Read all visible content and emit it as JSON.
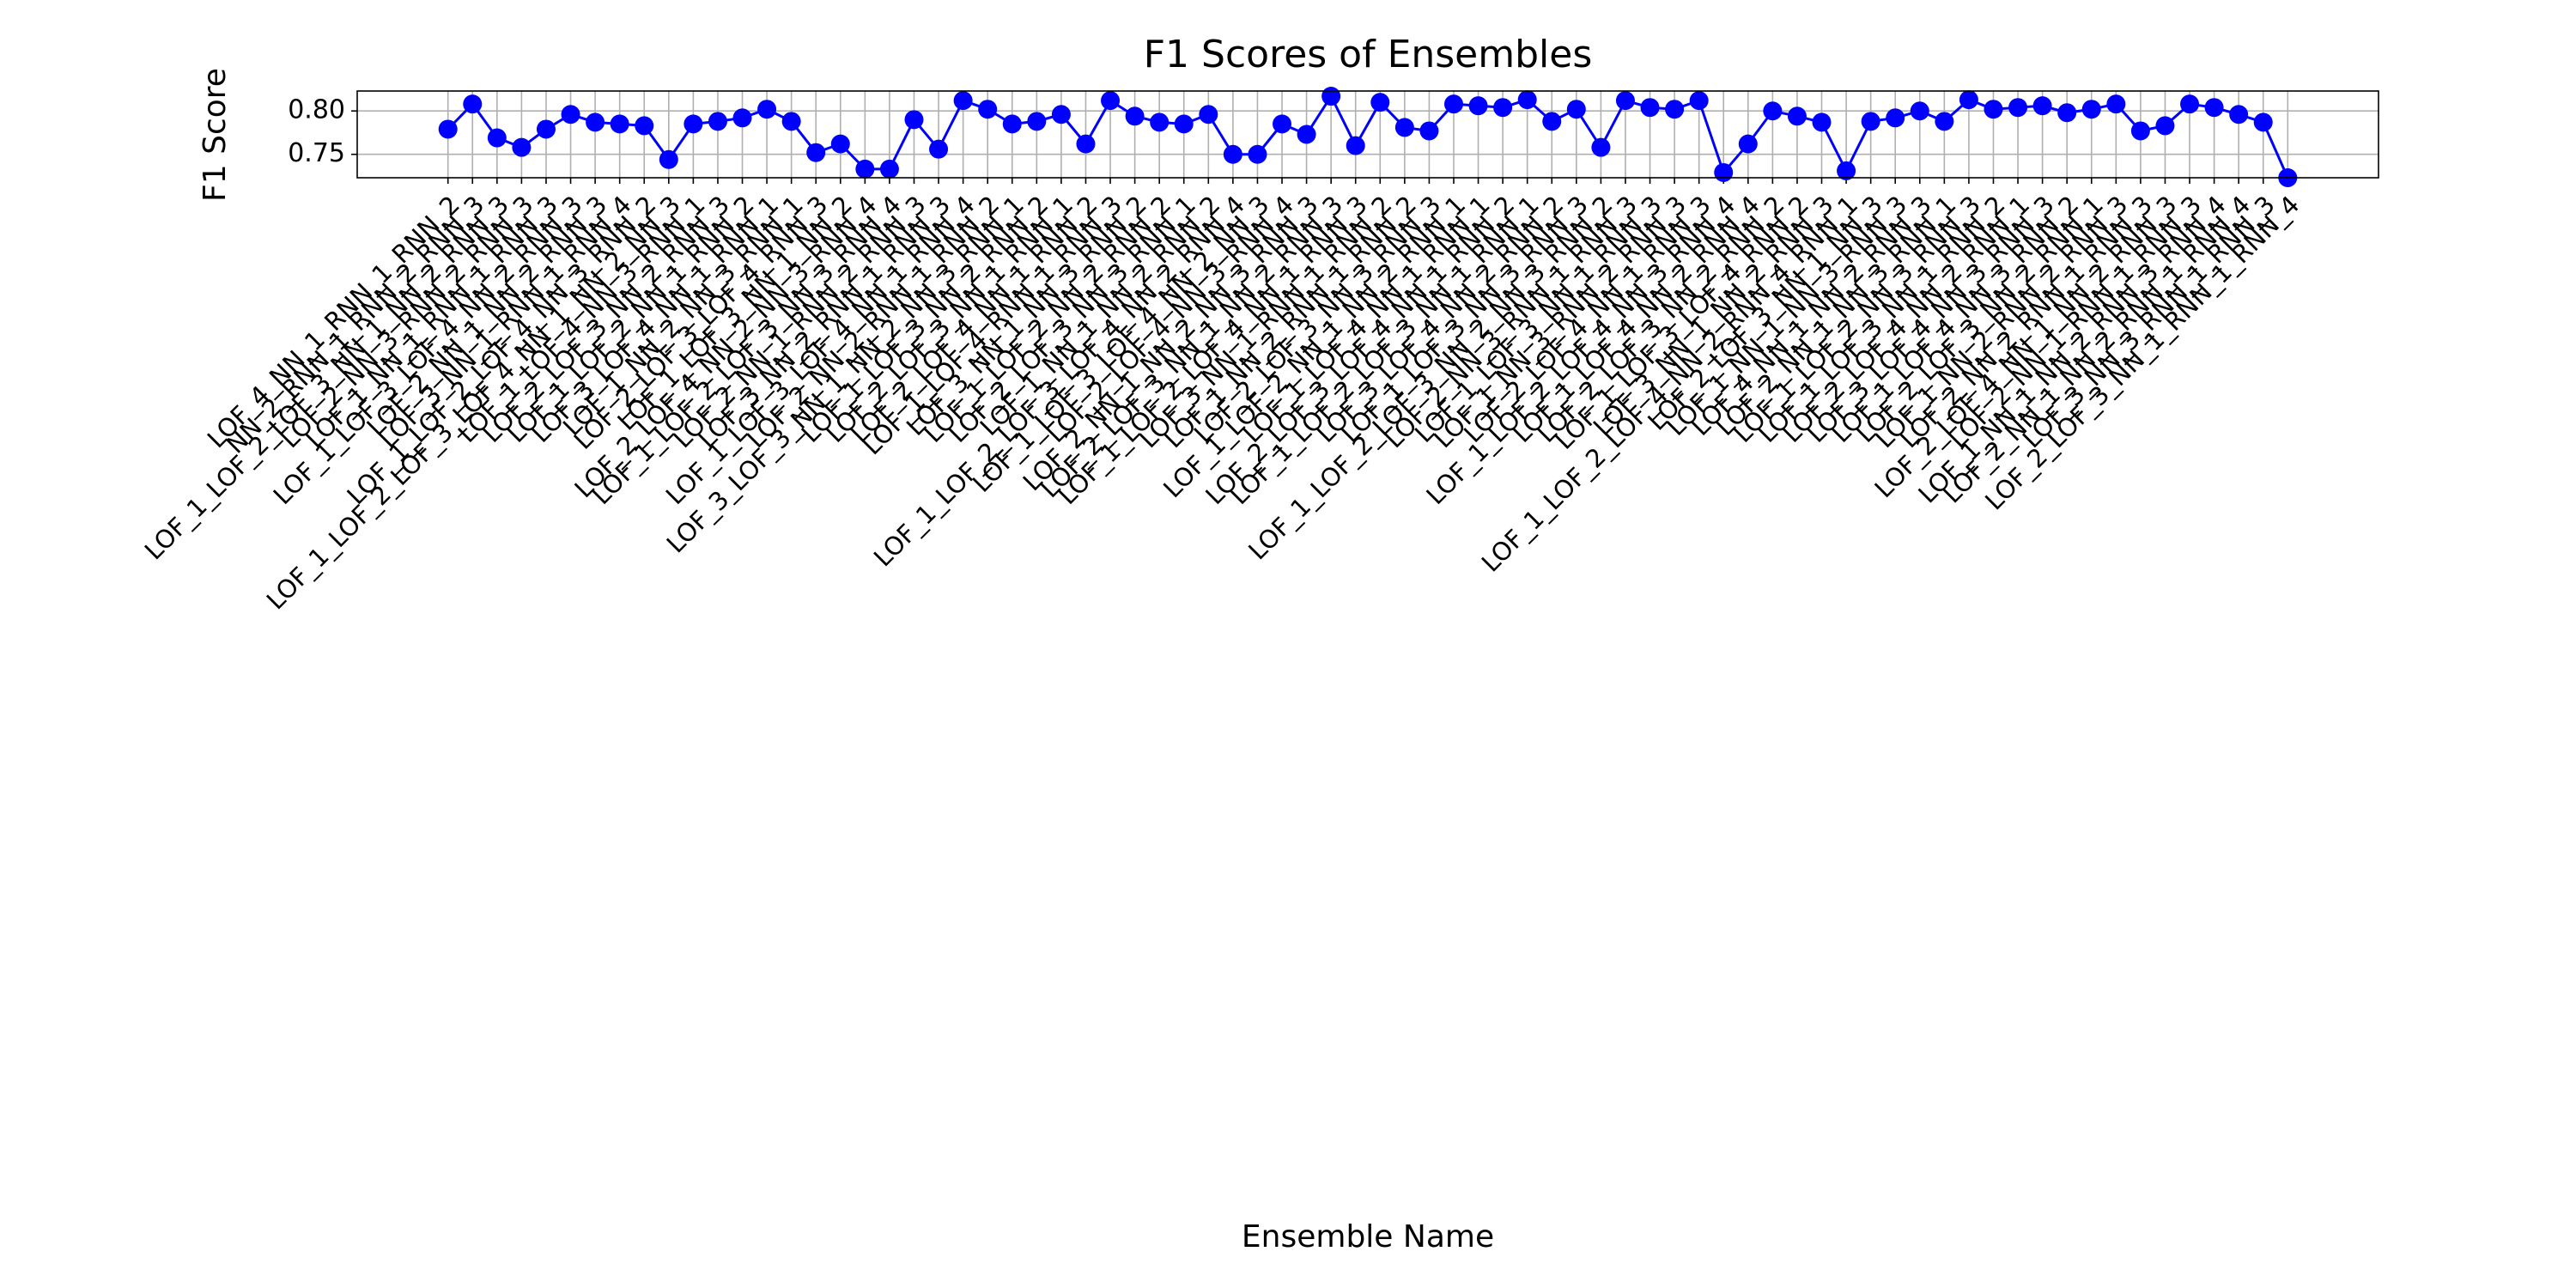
{
  "chart_data": {
    "type": "line",
    "title": "F1 Scores of Ensembles",
    "x_label": "Ensemble Name",
    "y_label": "F1 Score",
    "categories": [
      "LOF_4_NN_1_RNN_1_RNN_2",
      "NN_2_RNN_1_RNN_2_RNN_3",
      "LOF_1_LOF_2_LOF_3_NN_1_NN_2_RNN_3",
      "LOF_2_NN_3_RNN_2_RNN_3",
      "LOF_1_NN_1_RNN_1_RNN_3",
      "LOF_1_LOF_3_LOF_4_NN_2_RNN_3",
      "LOF_2_NN_1_NN_2_RNN_3",
      "LOF_3_NN_1_RNN_1_RNN_4",
      "LOF_1_LOF_2_LOF_4_NN_3_RNN_2",
      "LOF_1_LOF_2_LOF_3_LOF_4_NN_1_NN_2_NN_3",
      "LOF_1_LOF_4_NN_3_RNN_1",
      "LOF_2_LOF_3_NN_2_RNN_3",
      "LOF_1_LOF_2_NN_1_RNN_2",
      "LOF_3_LOF_4_NN_1_RNN_1",
      "LOF_1_NN_2_NN_3_RNN_1",
      "LOF_2_LOF_3_LOF_4_RNN_3",
      "LOF_1_LOF_3_NN_1_NN_2",
      "LOF_2_LOF_4_NN_2_NN_3_RNN_4",
      "LOF_1_LOF_2_LOF_3_NN_3_RNN_4",
      "LOF_2_NN_1_RNN_2_RNN_3",
      "LOF_3_NN_2_RNN_1_RNN_3",
      "LOF_1_LOF_3_LOF_4_NN_1_RNN_4",
      "LOF_2_NN_2_RNN_1_RNN_2",
      "LOF_3_LOF_3_NN_1_NN_2_NN_3_RNN_1",
      "LOF_1_LOF_3_NN_2_RNN_2",
      "LOF_2_LOF_3_NN_1_RNN_1",
      "LOF_2_LOF_4_NN_1_RNN_2",
      "LOF_1_LOF_4_RNN_1_RNN_3",
      "LOF_3_NN_1_NN_3_RNN_2",
      "LOF_1_LOF_2_NN_2_RNN_2",
      "LOF_2_LOF_3_NN_3_RNN_1",
      "LOF_1_NN_1_NN_2_RNN_2",
      "LOF_1_LOF_2_LOF_3_LOF_4_NN_2_RNN_4",
      "LOF_1_LOF_3_LOF_4_NN_2_NN_3",
      "LOF_2_LOF_4_NN_3_RNN_4",
      "LOF_2_NN_1_NN_2_NN_3_RNN_3",
      "LOF_2_LOF_3_NN_1_NN_2_RNN_3",
      "LOF_1_LOF_2_LOF_4_NN_1_RNN_3",
      "LOF_3_NN_1_RNN_1_RNN_2",
      "LOF_1_NN_2_RNN_1_RNN_2",
      "LOF_2_LOF_3_NN_3_RNN_3",
      "LOF_1_LOF_2_NN_1_NN_2_RNN_1",
      "LOF_1_LOF_4_NN_1_RNN_1",
      "LOF_2_LOF_3_LOF_4_NN_1_RNN_2",
      "LOF_1_LOF_2_LOF_3_NN_1_RNN_1",
      "LOF_3_LOF_4_NN_2_RNN_2",
      "LOF_1_LOF_3_NN_3_RNN_3",
      "LOF_1_LOF_2_LOF_3_NN_2_NN_3_RNN_2",
      "LOF_2_NN_3_RNN_1_RNN_3",
      "LOF_1_LOF_3_NN_1_RNN_3",
      "LOF_1_NN_3_RNN_2_RNN_3",
      "LOF_2_LOF_4_NN_1_RNN_3",
      "LOF_1_LOF_2_LOF_4_NN_3_RNN_4",
      "LOF_1_LOF_4_NN_2_RNN_4",
      "LOF_2_LOF_3_NN_2_RNN_2",
      "LOF_1_LOF_3_LOF_4_RNN_2",
      "LOF_3_NN_1_NN_2_RNN_3",
      "LOF_1_LOF_2_LOF_4_NN_2_RNN_4_RNN_1",
      "LOF_2_LOF_3_NN_1_NN_3",
      "LOF_1_NN_1_NN_3_RNN_3",
      "LOF_4_NN_1_NN_2_RNN_3",
      "LOF_2_NN_1_NN_3_RNN_1",
      "LOF_1_LOF_2_NN_3_RNN_3",
      "LOF_1_LOF_3_NN_1_RNN_2",
      "LOF_2_LOF_4_NN_2_RNN_1",
      "LOF_3_LOF_4_NN_3_RNN_3",
      "LOF_1_LOF_4_NN_3_RNN_2",
      "LOF_2_LOF_3_NN_2_RNN_1",
      "LOF_1_NN_2_RNN_2_RNN_3",
      "LOF_2_NN_2_RNN_1_RNN_3",
      "LOF_2_LOF_4_NN_1_NN_2_RNN_3",
      "LOF_2_NN_1_RNN_1_RNN_3",
      "LOF_1_NN_1_NN_2_RNN_3_RNN_4",
      "LOF_2_NN_1_NN_2_RNN_1_RNN_4",
      "LOF_3_NN_3_RNN_1_RNN_3",
      "LOF_2_LOF_3_NN_1_RNN_1_RNN_4"
    ],
    "series": [
      {
        "name": "F1 Score",
        "color": "#0000ff",
        "values": [
          0.779,
          0.808,
          0.769,
          0.758,
          0.779,
          0.796,
          0.787,
          0.785,
          0.783,
          0.744,
          0.785,
          0.788,
          0.792,
          0.802,
          0.788,
          0.752,
          0.762,
          0.733,
          0.733,
          0.79,
          0.756,
          0.812,
          0.802,
          0.785,
          0.788,
          0.796,
          0.762,
          0.812,
          0.794,
          0.787,
          0.785,
          0.796,
          0.75,
          0.75,
          0.785,
          0.773,
          0.817,
          0.76,
          0.81,
          0.781,
          0.777,
          0.808,
          0.806,
          0.804,
          0.813,
          0.788,
          0.802,
          0.758,
          0.812,
          0.804,
          0.802,
          0.812,
          0.729,
          0.762,
          0.8,
          0.794,
          0.787,
          0.731,
          0.788,
          0.792,
          0.8,
          0.788,
          0.813,
          0.802,
          0.804,
          0.806,
          0.798,
          0.802,
          0.808,
          0.777,
          0.783,
          0.808,
          0.804,
          0.796,
          0.787,
          0.723
        ]
      }
    ],
    "ylim": [
      0.723,
      0.823
    ],
    "yticks": [
      0.75,
      {
        "value": 0.8,
        "label": "0.80"
      }
    ],
    "grid": true
  }
}
